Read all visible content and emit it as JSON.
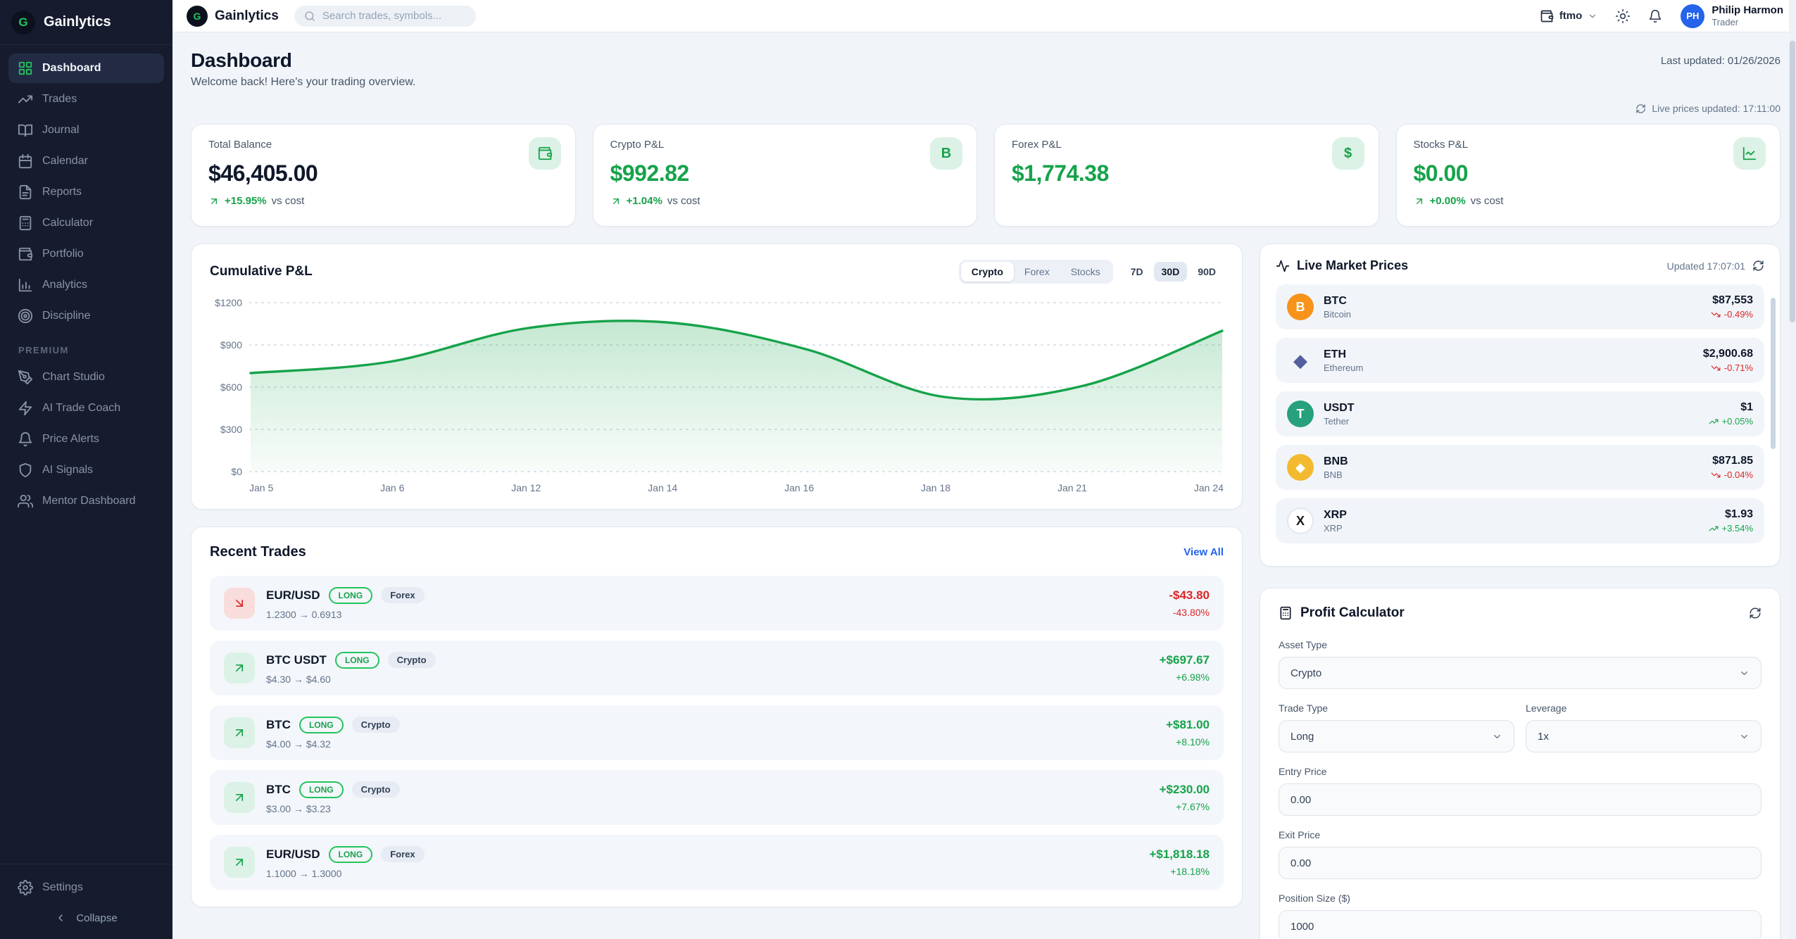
{
  "brand": {
    "name": "Gainlytics",
    "logo_letter": "G"
  },
  "topbar": {
    "search_placeholder": "Search trades, symbols...",
    "account": "ftmo",
    "user_name": "Philip Harmon",
    "user_role": "Trader",
    "avatar_initials": "PH"
  },
  "sidebar": {
    "items": [
      {
        "label": "Dashboard"
      },
      {
        "label": "Trades"
      },
      {
        "label": "Journal"
      },
      {
        "label": "Calendar"
      },
      {
        "label": "Reports"
      },
      {
        "label": "Calculator"
      },
      {
        "label": "Portfolio"
      },
      {
        "label": "Analytics"
      },
      {
        "label": "Discipline"
      }
    ],
    "premium_label": "PREMIUM",
    "premium_items": [
      {
        "label": "Chart Studio"
      },
      {
        "label": "AI Trade Coach"
      },
      {
        "label": "Price Alerts"
      },
      {
        "label": "AI Signals"
      },
      {
        "label": "Mentor Dashboard"
      }
    ],
    "settings_label": "Settings",
    "collapse_label": "Collapse"
  },
  "page": {
    "title": "Dashboard",
    "subtitle": "Welcome back! Here's your trading overview.",
    "last_updated": "Last updated: 01/26/2026",
    "live_prices_updated": "Live prices updated: 17:11:00"
  },
  "stats": [
    {
      "label": "Total Balance",
      "value": "$46,405.00",
      "delta": "+15.95%",
      "delta_suffix": "vs cost",
      "value_color": "dark"
    },
    {
      "label": "Crypto P&L",
      "value": "$992.82",
      "delta": "+1.04%",
      "delta_suffix": "vs cost",
      "icon_glyph": "B"
    },
    {
      "label": "Forex P&L",
      "value": "$1,774.38",
      "icon_glyph": "$"
    },
    {
      "label": "Stocks P&L",
      "value": "$0.00",
      "delta": "+0.00%",
      "delta_suffix": "vs cost"
    }
  ],
  "pnl_card": {
    "title": "Cumulative P&L",
    "asset_tabs": [
      "Crypto",
      "Forex",
      "Stocks"
    ],
    "active_asset_tab": "Crypto",
    "range_tabs": [
      "7D",
      "30D",
      "90D"
    ],
    "active_range_tab": "30D"
  },
  "chart_data": {
    "type": "area",
    "title": "Cumulative P&L",
    "x": [
      "Jan 5",
      "Jan 6",
      "Jan 12",
      "Jan 14",
      "Jan 16",
      "Jan 18",
      "Jan 21",
      "Jan 24"
    ],
    "values": [
      700,
      780,
      1020,
      1060,
      870,
      530,
      610,
      1000
    ],
    "ylim": [
      0,
      1200
    ],
    "yticks": [
      "$1200",
      "$900",
      "$600",
      "$300",
      "$0"
    ],
    "ylabel": "",
    "xlabel": "",
    "line_color": "#16a34a",
    "fill_color": "#16a34a",
    "grid": "horizontal-dotted",
    "legend": "none"
  },
  "market": {
    "title": "Live Market Prices",
    "updated": "Updated 17:07:01",
    "rows": [
      {
        "symbol": "BTC",
        "name": "Bitcoin",
        "price": "$87,553",
        "change": "-0.49%",
        "direction": "down",
        "icon_glyph": "B",
        "icon_bg": "#f7931a",
        "icon_color": "#ffffff"
      },
      {
        "symbol": "ETH",
        "name": "Ethereum",
        "price": "$2,900.68",
        "change": "-0.71%",
        "direction": "down",
        "icon_glyph": "◆",
        "icon_bg": "transparent",
        "icon_color": "#52609f"
      },
      {
        "symbol": "USDT",
        "name": "Tether",
        "price": "$1",
        "change": "+0.05%",
        "direction": "up",
        "icon_glyph": "T",
        "icon_bg": "#26a17b",
        "icon_color": "#ffffff"
      },
      {
        "symbol": "BNB",
        "name": "BNB",
        "price": "$871.85",
        "change": "-0.04%",
        "direction": "down",
        "icon_glyph": "◆",
        "icon_bg": "#f3ba2f",
        "icon_color": "#ffffff"
      },
      {
        "symbol": "XRP",
        "name": "XRP",
        "price": "$1.93",
        "change": "+3.54%",
        "direction": "up",
        "icon_glyph": "X",
        "icon_bg": "#ffffff",
        "icon_color": "#1a1a1a",
        "icon_border": "#e2e8f0"
      }
    ]
  },
  "trades": {
    "title": "Recent Trades",
    "view_all": "View All",
    "rows": [
      {
        "symbol": "EUR/USD",
        "side": "LONG",
        "category": "Forex",
        "range": "1.2300 → 0.6913",
        "amount": "-$43.80",
        "percent": "-43.80%",
        "direction": "down"
      },
      {
        "symbol": "BTC USDT",
        "side": "LONG",
        "category": "Crypto",
        "range": "$4.30 → $4.60",
        "amount": "+$697.67",
        "percent": "+6.98%",
        "direction": "up"
      },
      {
        "symbol": "BTC",
        "side": "LONG",
        "category": "Crypto",
        "range": "$4.00 → $4.32",
        "amount": "+$81.00",
        "percent": "+8.10%",
        "direction": "up"
      },
      {
        "symbol": "BTC",
        "side": "LONG",
        "category": "Crypto",
        "range": "$3.00 → $3.23",
        "amount": "+$230.00",
        "percent": "+7.67%",
        "direction": "up"
      },
      {
        "symbol": "EUR/USD",
        "side": "LONG",
        "category": "Forex",
        "range": "1.1000 → 1.3000",
        "amount": "+$1,818.18",
        "percent": "+18.18%",
        "direction": "up"
      }
    ]
  },
  "calculator": {
    "title": "Profit Calculator",
    "asset_type_label": "Asset Type",
    "asset_type_value": "Crypto",
    "trade_type_label": "Trade Type",
    "trade_type_value": "Long",
    "leverage_label": "Leverage",
    "leverage_value": "1x",
    "entry_label": "Entry Price",
    "entry_value": "0.00",
    "exit_label": "Exit Price",
    "exit_value": "0.00",
    "size_label": "Position Size ($)",
    "size_value": "1000"
  },
  "colors": {
    "accent_green": "#16a34a",
    "accent_red": "#dc2626",
    "link_blue": "#2563eb",
    "sidebar_bg": "#161b2e",
    "avatar_blue": "#2563eb",
    "btc_orange": "#f7931a",
    "usdt_teal": "#26a17b",
    "bnb_yellow": "#f3ba2f"
  }
}
